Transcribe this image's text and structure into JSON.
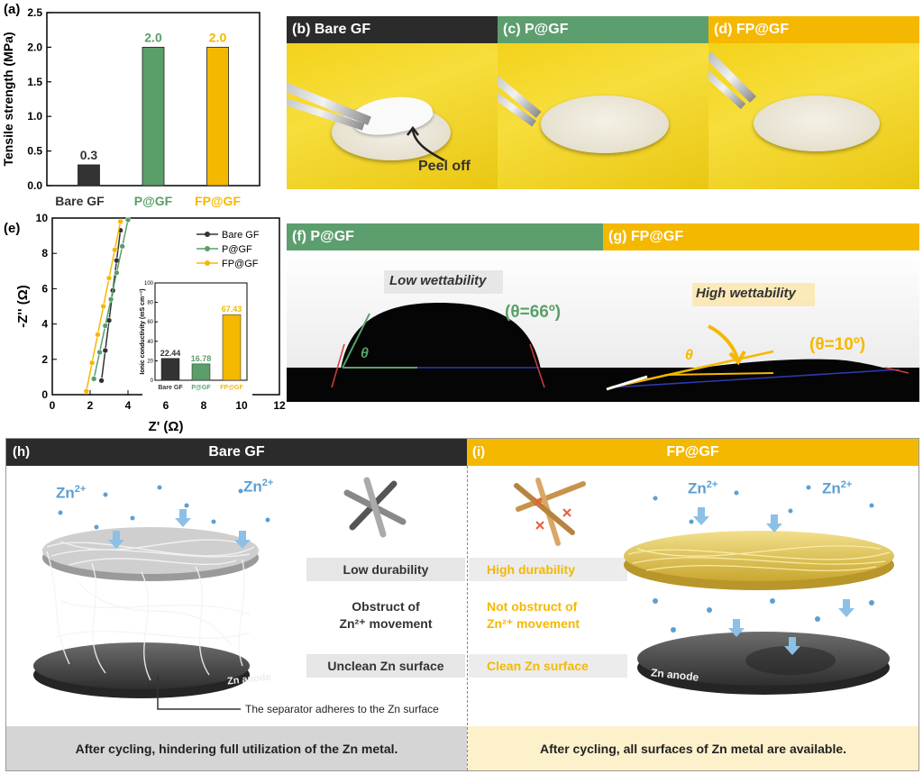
{
  "panel_letters": {
    "a": "(a)",
    "e": "(e)",
    "h": "(h)",
    "i": "(i)"
  },
  "colors": {
    "bare": "#333333",
    "p": "#5a9e6a",
    "fp": "#f5b800",
    "zn": "#5c9fd3",
    "dark_header": "#2b2b2b",
    "green_header": "#5d9e6e",
    "yellow_header": "#f5b800"
  },
  "chart_data": [
    {
      "type": "bar",
      "ylabel": "Tensile strength (MPa)",
      "categories": [
        "Bare GF",
        "P@GF",
        "FP@GF"
      ],
      "values": [
        0.3,
        2.0,
        2.0
      ],
      "value_labels": [
        "0.3",
        "2.0",
        "2.0"
      ],
      "ylim": [
        0,
        2.5
      ],
      "yticks": [
        "0.0",
        "0.5",
        "1.0",
        "1.5",
        "2.0",
        "2.5"
      ]
    },
    {
      "type": "scatter",
      "xlabel": "Z' (Ω)",
      "ylabel": "-Z'' (Ω)",
      "xlim": [
        0,
        12
      ],
      "ylim": [
        0,
        10
      ],
      "xticks": [
        "0",
        "2",
        "4",
        "6",
        "8",
        "10",
        "12"
      ],
      "yticks": [
        "0",
        "2",
        "4",
        "6",
        "8",
        "10"
      ],
      "legend": "top-right",
      "series": [
        {
          "name": "Bare GF",
          "x": [
            2.6,
            2.8,
            3.0,
            3.2,
            3.4,
            3.6
          ],
          "y": [
            0.8,
            2.5,
            4.2,
            5.9,
            7.6,
            9.3
          ]
        },
        {
          "name": "P@GF",
          "x": [
            2.2,
            2.5,
            2.8,
            3.1,
            3.4,
            3.7,
            4.0
          ],
          "y": [
            0.9,
            2.4,
            3.9,
            5.4,
            6.9,
            8.4,
            9.9
          ]
        },
        {
          "name": "FP@GF",
          "x": [
            1.8,
            2.1,
            2.4,
            2.7,
            3.0,
            3.3,
            3.6
          ],
          "y": [
            0.2,
            1.8,
            3.4,
            5.0,
            6.6,
            8.2,
            9.8
          ]
        }
      ]
    },
    {
      "type": "bar",
      "ylabel": "Ionic conductivity (mS cm⁻¹)",
      "categories": [
        "Bare GF",
        "P@GF",
        "FP@GF"
      ],
      "values": [
        22.44,
        16.78,
        67.43
      ],
      "value_labels": [
        "22.44",
        "16.78",
        "67.43"
      ],
      "ylim": [
        0,
        100
      ],
      "yticks": [
        "0",
        "20",
        "40",
        "60",
        "80",
        "100"
      ]
    }
  ],
  "photos": {
    "b": {
      "title": "(b) Bare GF",
      "annotation": "Peel off"
    },
    "c": {
      "title": "(c) P@GF"
    },
    "d": {
      "title": "(d) FP@GF"
    }
  },
  "contact": {
    "f": {
      "title": "(f) P@GF",
      "label": "Low wettability",
      "theta": "θ",
      "angle": "(θ=66º)"
    },
    "g": {
      "title": "(g) FP@GF",
      "label": "High wettability",
      "theta": "θ",
      "angle": "(θ=10º)"
    }
  },
  "schematic": {
    "h_title": "Bare GF",
    "i_title": "FP@GF",
    "zn_ion": "Zn",
    "zn_sup": "2+",
    "zn_anode": "Zn anode",
    "bare_props": [
      "Low durability",
      "Obstruct of",
      "Zn²⁺ movement",
      "Unclean Zn surface"
    ],
    "fp_props": [
      "High durability",
      "Not obstruct of",
      "Zn²⁺ movement",
      "Clean Zn surface"
    ],
    "adhere_note": "The separator adheres to the Zn surface",
    "h_footer": "After cycling, hindering full utilization of the Zn metal.",
    "i_footer": "After cycling, all surfaces of Zn metal are available."
  }
}
